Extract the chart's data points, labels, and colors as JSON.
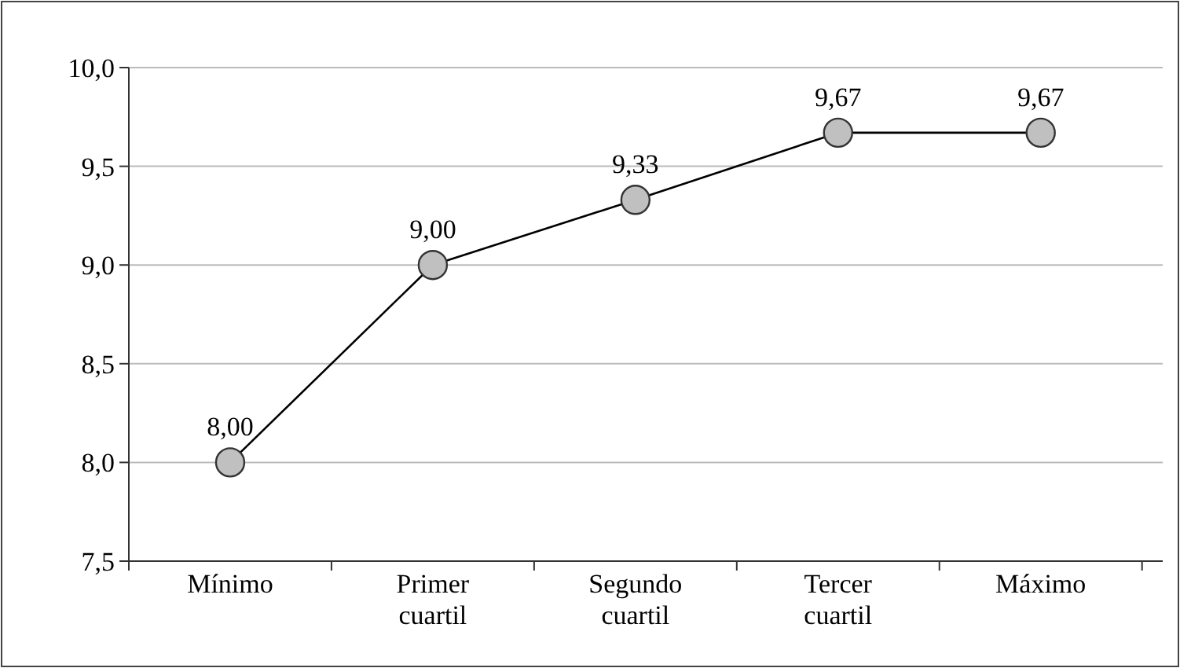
{
  "chart_data": {
    "type": "line",
    "categories": [
      "Mínimo",
      "Primer cuartil",
      "Segundo cuartil",
      "Tercer cuartil",
      "Máximo"
    ],
    "series": [
      {
        "color": "#000000",
        "values": [
          8.0,
          9.0,
          9.33,
          9.67,
          9.67
        ],
        "value_labels": [
          "8,00",
          "9,00",
          "9,33",
          "9,67",
          "9,67"
        ]
      }
    ],
    "ylim": [
      7.5,
      10.0
    ],
    "yticks": [
      {
        "value": 7.5,
        "label": "7,5"
      },
      {
        "value": 8.0,
        "label": "8,0"
      },
      {
        "value": 8.5,
        "label": "8,5"
      },
      {
        "value": 9.0,
        "label": "9,0"
      },
      {
        "value": 9.5,
        "label": "9,5"
      },
      {
        "value": 10.0,
        "label": "10,0"
      }
    ],
    "grid": "y",
    "marker": "circle",
    "line_style": "solid"
  }
}
